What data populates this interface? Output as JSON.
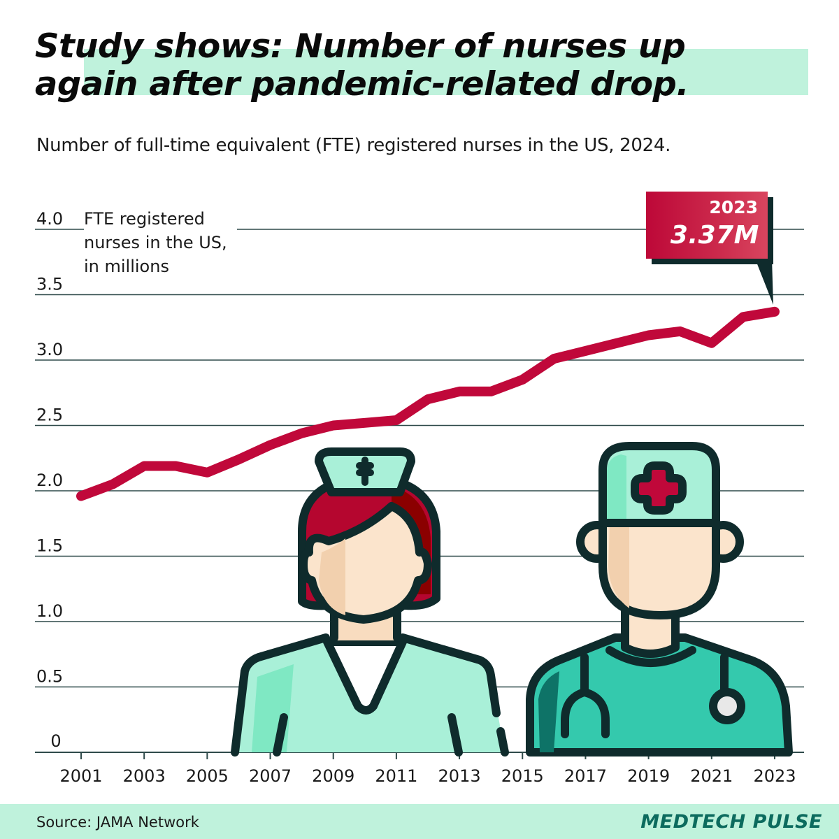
{
  "header": {
    "title_line1": "Study shows: Number of nurses up",
    "title_line2": "again after pandemic-related drop.",
    "subtitle": "Number of full-time equivalent (FTE) registered nurses in the US, 2024."
  },
  "axis": {
    "y_title_line1": "FTE registered",
    "y_title_line2": "nurses in the US,",
    "y_title_line3": "in millions"
  },
  "callout": {
    "year": "2023",
    "value": "3.37M"
  },
  "footer": {
    "source": "Source: JAMA Network",
    "brand": "MEDTECH PULSE"
  },
  "colors": {
    "line": "#c0083a",
    "grid": "#2f4a4a",
    "highlight": "#bff2dc",
    "callout": "#c4103f",
    "shadow": "#0f2b2c",
    "brand": "#0c6b5e"
  },
  "illustrations": [
    {
      "name": "female-nurse",
      "description": "nurse with cap and red hair"
    },
    {
      "name": "male-doctor",
      "description": "doctor with surgical cap and stethoscope"
    }
  ],
  "chart_data": {
    "type": "line",
    "title": "Study shows: Number of nurses up again after pandemic-related drop.",
    "subtitle": "Number of full-time equivalent (FTE) registered nurses in the US, 2024.",
    "xlabel": "",
    "ylabel": "FTE registered nurses in the US, in millions",
    "x": [
      2001,
      2002,
      2003,
      2004,
      2005,
      2006,
      2007,
      2008,
      2009,
      2010,
      2011,
      2012,
      2013,
      2014,
      2015,
      2016,
      2017,
      2018,
      2019,
      2020,
      2021,
      2022,
      2023
    ],
    "series": [
      {
        "name": "FTE registered nurses (millions)",
        "values": [
          1.96,
          2.05,
          2.19,
          2.19,
          2.14,
          2.24,
          2.35,
          2.44,
          2.5,
          2.52,
          2.54,
          2.7,
          2.76,
          2.76,
          2.85,
          3.01,
          3.07,
          3.13,
          3.19,
          3.22,
          3.13,
          3.33,
          3.37
        ]
      }
    ],
    "x_tick_labels": [
      "2001",
      "2003",
      "2005",
      "2007",
      "2009",
      "2011",
      "2013",
      "2015",
      "2017",
      "2019",
      "2021",
      "2023"
    ],
    "y_ticks": [
      0,
      0.5,
      1.0,
      1.5,
      2.0,
      2.5,
      3.0,
      3.5,
      4.0
    ],
    "y_tick_labels": [
      "0",
      "0.5",
      "1.0",
      "1.5",
      "2.0",
      "2.5",
      "3.0",
      "3.5",
      "4.0"
    ],
    "ylim": [
      0,
      4.0
    ],
    "xlim": [
      2000.5,
      2023.5
    ],
    "grid": true,
    "legend": "none",
    "annotations": [
      {
        "x": 2023,
        "y": 3.37,
        "text": "2023 3.37M"
      }
    ],
    "source": "Source: JAMA Network"
  }
}
